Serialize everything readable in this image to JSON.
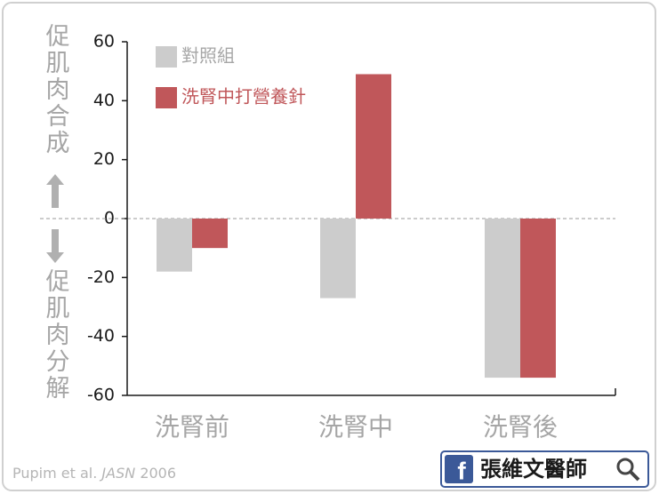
{
  "chart_data": {
    "type": "bar",
    "ylabel_top": "促肌肉合成",
    "ylabel_bottom": "促肌肉分解",
    "categories": [
      "洗腎前",
      "洗腎中",
      "洗腎後"
    ],
    "series": [
      {
        "name": "對照組",
        "color": "#cccccc",
        "values": [
          -18,
          -27,
          -54
        ]
      },
      {
        "name": "洗腎中打營養針",
        "color": "#c0575a",
        "values": [
          -10,
          49,
          -54
        ]
      }
    ],
    "ylim": [
      -60,
      60
    ],
    "yticks": [
      -60,
      -40,
      -20,
      0,
      20,
      40,
      60
    ],
    "zero_line": true
  },
  "citation": {
    "authors": "Pupim et al.",
    "journal": "JASN",
    "year": "2006"
  },
  "brand": "張維文醫師"
}
